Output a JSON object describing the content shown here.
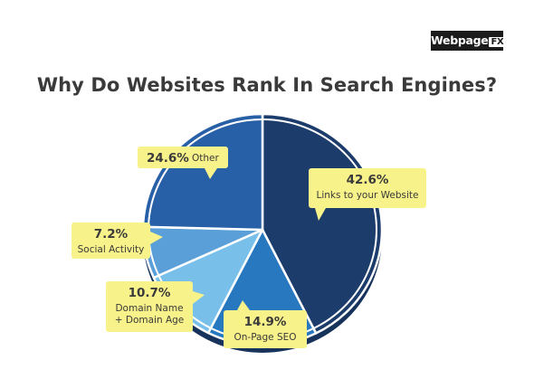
{
  "brand": {
    "name": "Webpage",
    "suffix": "FX"
  },
  "chart_data": {
    "type": "pie",
    "title": "Why Do Websites Rank In Search Engines?",
    "slices": [
      {
        "label": "Links to your Website",
        "value": 42.6,
        "pct_text": "42.6%",
        "color": "#1c3c6c"
      },
      {
        "label": "On-Page SEO",
        "value": 14.9,
        "pct_text": "14.9%",
        "color": "#2878c0"
      },
      {
        "label": "Domain Name + Domain Age",
        "value": 10.7,
        "pct_text": "10.7%",
        "color": "#78c0ea"
      },
      {
        "label": "Social Activity",
        "value": 7.2,
        "pct_text": "7.2%",
        "color": "#5a9fd8"
      },
      {
        "label": "Other",
        "value": 24.6,
        "pct_text": "24.6%",
        "color": "#2860a8"
      }
    ],
    "callout_color": "#f7f28a",
    "edge_color": "#17335c"
  }
}
